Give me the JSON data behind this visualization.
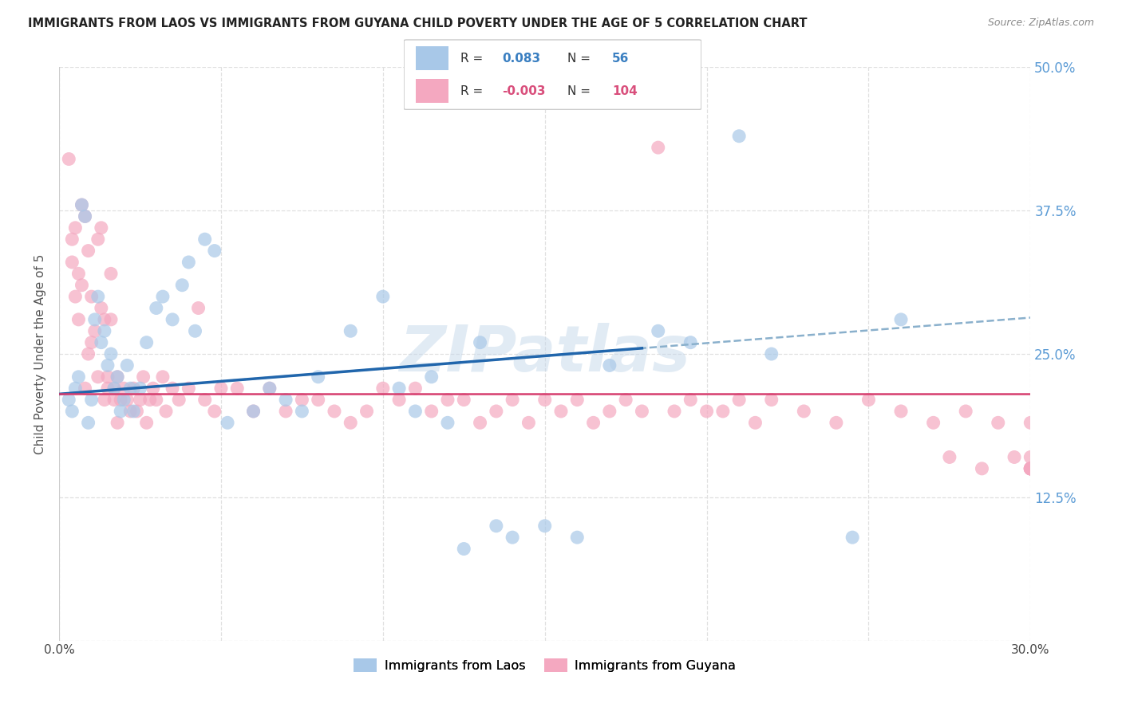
{
  "title": "IMMIGRANTS FROM LAOS VS IMMIGRANTS FROM GUYANA CHILD POVERTY UNDER THE AGE OF 5 CORRELATION CHART",
  "source": "Source: ZipAtlas.com",
  "ylabel": "Child Poverty Under the Age of 5",
  "xlim": [
    0.0,
    0.3
  ],
  "ylim": [
    0.0,
    0.5
  ],
  "xtick_vals": [
    0.0,
    0.05,
    0.1,
    0.15,
    0.2,
    0.25,
    0.3
  ],
  "ytick_vals": [
    0.0,
    0.125,
    0.25,
    0.375,
    0.5
  ],
  "xtick_labels": [
    "0.0%",
    "",
    "",
    "",
    "",
    "",
    "30.0%"
  ],
  "ytick_labels": [
    "",
    "12.5%",
    "25.0%",
    "37.5%",
    "50.0%"
  ],
  "watermark": "ZIPatlas",
  "legend_laos_R": "0.083",
  "legend_laos_N": "56",
  "legend_guyana_R": "-0.003",
  "legend_guyana_N": "104",
  "laos_color": "#a8c8e8",
  "guyana_color": "#f4a8c0",
  "laos_trend_color": "#2166ac",
  "guyana_trend_color": "#d63d6e",
  "dashed_color": "#8ab0cc",
  "background_color": "#ffffff",
  "grid_color": "#e0e0e0",
  "right_tick_color": "#5b9bd5",
  "title_color": "#222222",
  "source_color": "#888888",
  "laos_x": [
    0.003,
    0.004,
    0.005,
    0.006,
    0.007,
    0.008,
    0.009,
    0.01,
    0.011,
    0.012,
    0.013,
    0.014,
    0.015,
    0.016,
    0.017,
    0.018,
    0.019,
    0.02,
    0.021,
    0.022,
    0.023,
    0.025,
    0.027,
    0.03,
    0.032,
    0.035,
    0.038,
    0.04,
    0.042,
    0.045,
    0.048,
    0.052,
    0.06,
    0.065,
    0.07,
    0.075,
    0.08,
    0.09,
    0.1,
    0.105,
    0.11,
    0.115,
    0.12,
    0.125,
    0.13,
    0.135,
    0.14,
    0.15,
    0.16,
    0.17,
    0.185,
    0.195,
    0.21,
    0.22,
    0.245,
    0.26
  ],
  "laos_y": [
    0.21,
    0.2,
    0.22,
    0.23,
    0.38,
    0.37,
    0.19,
    0.21,
    0.28,
    0.3,
    0.26,
    0.27,
    0.24,
    0.25,
    0.22,
    0.23,
    0.2,
    0.21,
    0.24,
    0.22,
    0.2,
    0.22,
    0.26,
    0.29,
    0.3,
    0.28,
    0.31,
    0.33,
    0.27,
    0.35,
    0.34,
    0.19,
    0.2,
    0.22,
    0.21,
    0.2,
    0.23,
    0.27,
    0.3,
    0.22,
    0.2,
    0.23,
    0.19,
    0.08,
    0.26,
    0.1,
    0.09,
    0.1,
    0.09,
    0.24,
    0.27,
    0.26,
    0.44,
    0.25,
    0.09,
    0.28
  ],
  "guyana_x": [
    0.003,
    0.004,
    0.004,
    0.005,
    0.005,
    0.006,
    0.006,
    0.007,
    0.007,
    0.008,
    0.008,
    0.009,
    0.009,
    0.01,
    0.01,
    0.011,
    0.012,
    0.012,
    0.013,
    0.013,
    0.014,
    0.014,
    0.015,
    0.015,
    0.016,
    0.016,
    0.017,
    0.017,
    0.018,
    0.018,
    0.019,
    0.02,
    0.021,
    0.022,
    0.023,
    0.024,
    0.025,
    0.026,
    0.027,
    0.028,
    0.029,
    0.03,
    0.032,
    0.033,
    0.035,
    0.037,
    0.04,
    0.043,
    0.045,
    0.048,
    0.05,
    0.055,
    0.06,
    0.065,
    0.07,
    0.075,
    0.08,
    0.085,
    0.09,
    0.095,
    0.1,
    0.105,
    0.11,
    0.115,
    0.12,
    0.125,
    0.13,
    0.135,
    0.14,
    0.145,
    0.15,
    0.155,
    0.16,
    0.165,
    0.17,
    0.175,
    0.18,
    0.185,
    0.19,
    0.195,
    0.2,
    0.205,
    0.21,
    0.215,
    0.22,
    0.23,
    0.24,
    0.25,
    0.26,
    0.27,
    0.275,
    0.28,
    0.285,
    0.29,
    0.295,
    0.3,
    0.3,
    0.3,
    0.3,
    0.3,
    0.3,
    0.3,
    0.3,
    0.3
  ],
  "guyana_y": [
    0.42,
    0.33,
    0.35,
    0.36,
    0.3,
    0.32,
    0.28,
    0.31,
    0.38,
    0.37,
    0.22,
    0.34,
    0.25,
    0.3,
    0.26,
    0.27,
    0.23,
    0.35,
    0.36,
    0.29,
    0.28,
    0.21,
    0.22,
    0.23,
    0.32,
    0.28,
    0.21,
    0.22,
    0.23,
    0.19,
    0.21,
    0.22,
    0.21,
    0.2,
    0.22,
    0.2,
    0.21,
    0.23,
    0.19,
    0.21,
    0.22,
    0.21,
    0.23,
    0.2,
    0.22,
    0.21,
    0.22,
    0.29,
    0.21,
    0.2,
    0.22,
    0.22,
    0.2,
    0.22,
    0.2,
    0.21,
    0.21,
    0.2,
    0.19,
    0.2,
    0.22,
    0.21,
    0.22,
    0.2,
    0.21,
    0.21,
    0.19,
    0.2,
    0.21,
    0.19,
    0.21,
    0.2,
    0.21,
    0.19,
    0.2,
    0.21,
    0.2,
    0.43,
    0.2,
    0.21,
    0.2,
    0.2,
    0.21,
    0.19,
    0.21,
    0.2,
    0.19,
    0.21,
    0.2,
    0.19,
    0.16,
    0.2,
    0.15,
    0.19,
    0.16,
    0.15,
    0.19,
    0.15,
    0.16,
    0.15,
    0.15,
    0.15,
    0.15,
    0.15
  ]
}
